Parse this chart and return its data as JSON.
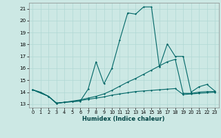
{
  "xlabel": "Humidex (Indice chaleur)",
  "bg_color": "#cce8e4",
  "grid_color": "#b0d8d4",
  "line_color": "#006666",
  "ylim": [
    12.7,
    21.5
  ],
  "xlim": [
    -0.5,
    23.5
  ],
  "yticks": [
    13,
    14,
    15,
    16,
    17,
    18,
    19,
    20,
    21
  ],
  "xticks": [
    0,
    1,
    2,
    3,
    4,
    5,
    6,
    7,
    8,
    9,
    10,
    11,
    12,
    13,
    14,
    15,
    16,
    17,
    18,
    19,
    20,
    21,
    22,
    23
  ],
  "line1_x": [
    0,
    1,
    2,
    3,
    4,
    5,
    6,
    7,
    8,
    9,
    10,
    11,
    12,
    13,
    14,
    15,
    16,
    17,
    18,
    19,
    20,
    21,
    22,
    23
  ],
  "line1_y": [
    14.2,
    14.0,
    13.65,
    13.05,
    13.15,
    13.2,
    13.25,
    14.25,
    16.55,
    14.7,
    16.0,
    18.4,
    20.65,
    20.55,
    21.15,
    21.15,
    16.1,
    18.05,
    17.0,
    17.0,
    14.0,
    14.45,
    14.65,
    14.1
  ],
  "line2_x": [
    0,
    2,
    3,
    4,
    5,
    6,
    7,
    8,
    9,
    10,
    11,
    12,
    13,
    14,
    15,
    16,
    17,
    18,
    19,
    20,
    21,
    22,
    23
  ],
  "line2_y": [
    14.2,
    13.65,
    13.05,
    13.15,
    13.25,
    13.35,
    13.5,
    13.65,
    13.85,
    14.15,
    14.5,
    14.85,
    15.15,
    15.5,
    15.85,
    16.2,
    16.55,
    16.75,
    13.9,
    13.9,
    14.0,
    14.05,
    14.05
  ],
  "line3_x": [
    0,
    2,
    3,
    4,
    5,
    6,
    7,
    8,
    9,
    10,
    11,
    12,
    13,
    14,
    15,
    16,
    17,
    18,
    19,
    20,
    21,
    22,
    23
  ],
  "line3_y": [
    14.2,
    13.65,
    13.1,
    13.15,
    13.2,
    13.3,
    13.4,
    13.5,
    13.6,
    13.75,
    13.85,
    13.95,
    14.05,
    14.1,
    14.15,
    14.2,
    14.25,
    14.3,
    13.8,
    13.85,
    13.9,
    13.95,
    14.0
  ]
}
